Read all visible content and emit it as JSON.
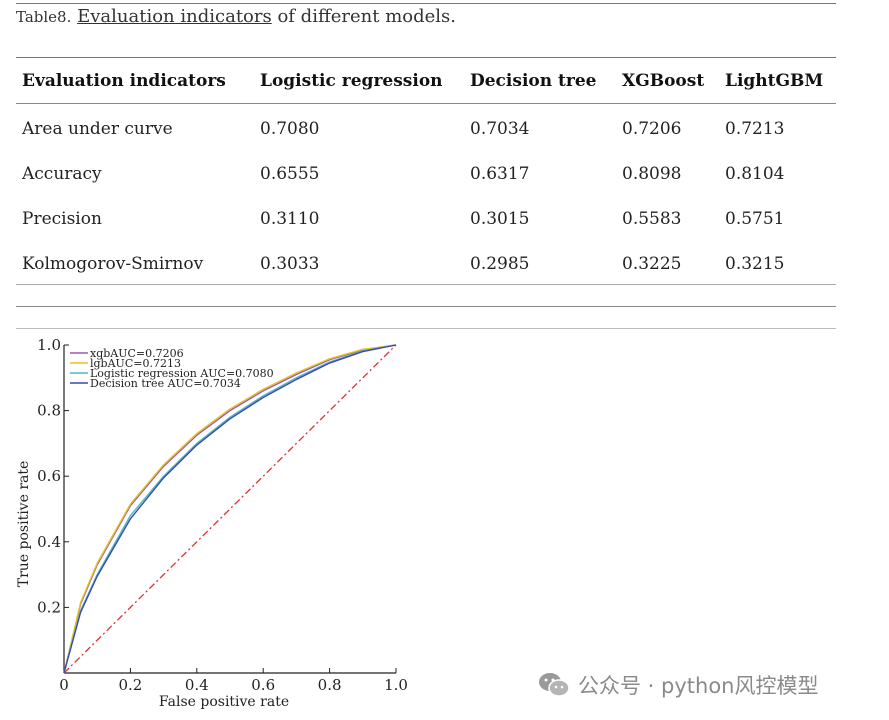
{
  "caption": {
    "label": "Table8.",
    "link_text": "Evaluation indicators",
    "rest": " of different models."
  },
  "table": {
    "headers": [
      "Evaluation indicators",
      "Logistic regression",
      "Decision tree",
      "XGBoost",
      "LightGBM"
    ],
    "rows": [
      [
        "Area under curve",
        "0.7080",
        "0.7034",
        "0.7206",
        "0.7213"
      ],
      [
        "Accuracy",
        "0.6555",
        "0.6317",
        "0.8098",
        "0.8104"
      ],
      [
        "Precision",
        "0.3110",
        "0.3015",
        "0.5583",
        "0.5751"
      ],
      [
        "Kolmogorov-Smirnov",
        "0.3033",
        "0.2985",
        "0.3225",
        "0.3215"
      ]
    ]
  },
  "chart_data": {
    "type": "line",
    "xlabel": "False positive rate",
    "ylabel": "True positive rate",
    "xlim": [
      0,
      1
    ],
    "ylim": [
      0,
      1
    ],
    "x_ticks": [
      "0",
      "0.2",
      "0.4",
      "0.6",
      "0.8",
      "1.0"
    ],
    "y_ticks": [
      "0.2",
      "0.4",
      "0.6",
      "0.8",
      "1.0"
    ],
    "legend_position": "top-left",
    "series": [
      {
        "name": "xgbAUC=0.7206",
        "color": "#9b59b6",
        "x": [
          0,
          0.05,
          0.1,
          0.2,
          0.3,
          0.4,
          0.5,
          0.6,
          0.7,
          0.8,
          0.9,
          1.0
        ],
        "y": [
          0,
          0.21,
          0.33,
          0.51,
          0.63,
          0.725,
          0.8,
          0.86,
          0.91,
          0.955,
          0.985,
          1.0
        ]
      },
      {
        "name": "lgbAUC=0.7213",
        "color": "#e8c31a",
        "x": [
          0,
          0.05,
          0.1,
          0.2,
          0.3,
          0.4,
          0.5,
          0.6,
          0.7,
          0.8,
          0.9,
          1.0
        ],
        "y": [
          0,
          0.215,
          0.335,
          0.515,
          0.635,
          0.73,
          0.805,
          0.865,
          0.915,
          0.958,
          0.987,
          1.0
        ]
      },
      {
        "name": "Logistic regression AUC=0.7080",
        "color": "#4fb8c8",
        "x": [
          0,
          0.05,
          0.1,
          0.2,
          0.3,
          0.4,
          0.5,
          0.6,
          0.7,
          0.8,
          0.9,
          1.0
        ],
        "y": [
          0,
          0.19,
          0.3,
          0.48,
          0.6,
          0.7,
          0.78,
          0.845,
          0.9,
          0.948,
          0.982,
          1.0
        ]
      },
      {
        "name": "Decision tree AUC=0.7034",
        "color": "#3b4ba8",
        "x": [
          0,
          0.05,
          0.1,
          0.2,
          0.3,
          0.4,
          0.5,
          0.6,
          0.7,
          0.8,
          0.9,
          1.0
        ],
        "y": [
          0,
          0.185,
          0.295,
          0.47,
          0.595,
          0.695,
          0.775,
          0.84,
          0.895,
          0.945,
          0.98,
          1.0
        ]
      }
    ],
    "reference_line": {
      "color": "#e03030",
      "x": [
        0,
        1
      ],
      "y": [
        0,
        1
      ]
    }
  },
  "watermark": {
    "text": "公众号 · python风控模型"
  }
}
